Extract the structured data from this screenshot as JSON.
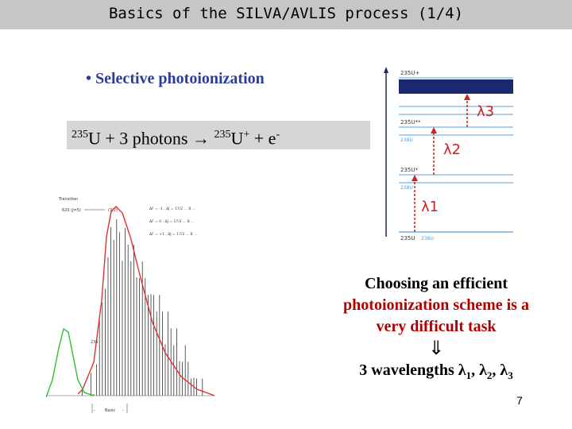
{
  "slide": {
    "title": "Basics of the SILVA/AVLIS process (1/4)",
    "bullet": "• Selective photoionization",
    "equation": {
      "mass1": "235",
      "part1": "U + 3 photons ",
      "arrow": "→",
      "mass2": "235",
      "part2": "U",
      "plus_charge": "+",
      "part3": " + e",
      "minus_charge": "-"
    },
    "note": {
      "line1": "Choosing an efficient",
      "line2": "photoionization scheme is a",
      "line3": "very difficult task",
      "arrow": "⇓",
      "wavelengths_prefix": "3 wavelengths ",
      "lambda": "λ",
      "sub1": "1",
      "sub2": "2",
      "sub3": "3",
      "sep": ", "
    },
    "page_number": "7"
  },
  "energy_diagram": {
    "ion_level": "235U+",
    "level_2_upper": "235U**",
    "level_2_lower": "238U",
    "level_1_upper": "235U*",
    "level_1_lower": "238U",
    "ground_235": "235U",
    "ground_238": "238U",
    "lambda_1": "λ1",
    "lambda_2": "λ2",
    "lambda_3": "λ3",
    "colors": {
      "band": "#1a2870",
      "line": "#5a9fd8",
      "arrow": "#d02020"
    }
  },
  "spectrum": {
    "header": "Transition",
    "label_left": "620 (J=5)",
    "label_right": "(7/2)",
    "legend": [
      "ΔF = -1 , ΔJ = 17/2 ... B ...",
      "ΔF = 0 , ΔJ = 17/2 ... B ...",
      "ΔF = +1 , ΔJ = 17/2 ... B ..."
    ],
    "peak_label": "235",
    "axis_labels": [
      "-",
      "Basic",
      "-"
    ],
    "colors": {
      "red_curve": "#e03030",
      "green_curve": "#30c030",
      "peaks": "#333333"
    }
  }
}
